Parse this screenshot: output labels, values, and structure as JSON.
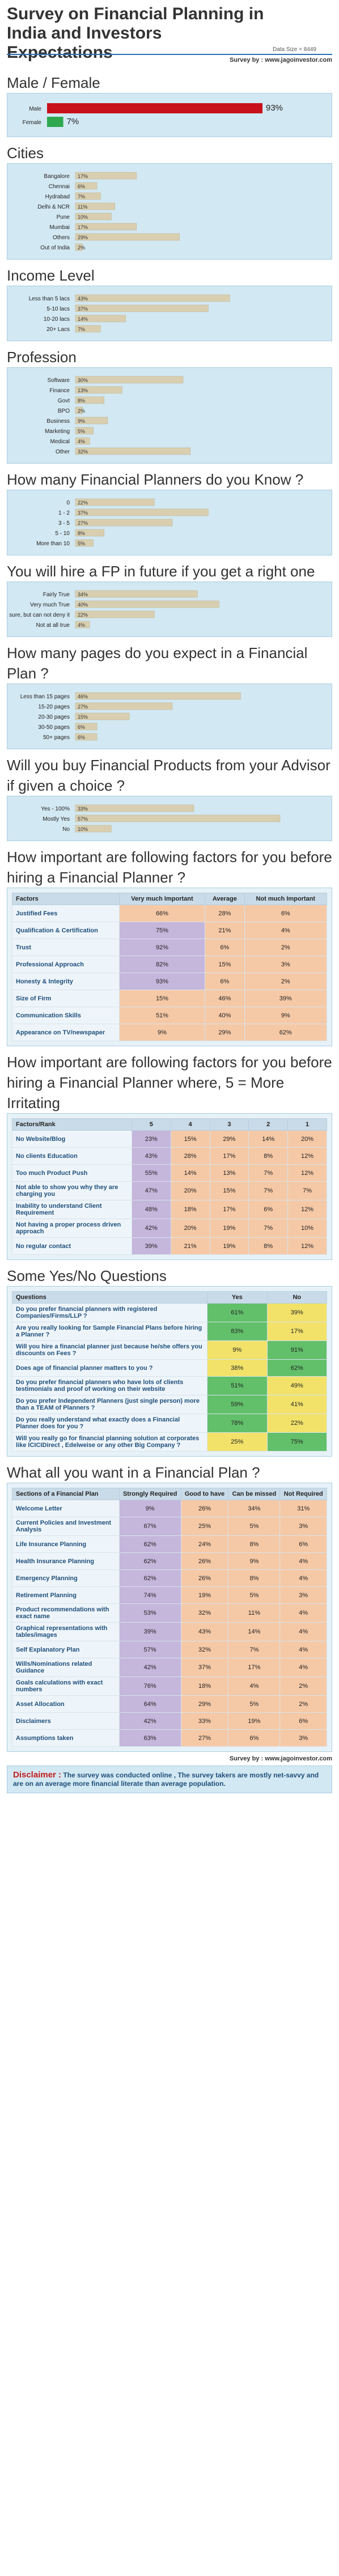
{
  "header": {
    "title": "Survey on Financial Planning in India and Investors Expectations",
    "data_size": "Data Size = 8449",
    "survey_by": "Survey by : www.jagoinvestor.com"
  },
  "colors": {
    "bar": "#d9cfb0",
    "bar_stroke": "#b9ad88",
    "male": "#c8101a",
    "female": "#2fa84f",
    "green_cell": "#62c06a",
    "yellow_cell": "#f2e26a",
    "purple_cell": "#c5b6dc",
    "peach_cell": "#f6c9a6"
  },
  "chart_data": [
    {
      "type": "bar",
      "title": "Male / Female",
      "categories": [
        "Male",
        "Female"
      ],
      "values": [
        93,
        7
      ],
      "value_labels": [
        "93%",
        "7%"
      ]
    },
    {
      "type": "bar",
      "title": "Cities",
      "categories": [
        "Bangalore",
        "Chennai",
        "Hydrabad",
        "Delhi & NCR",
        "Pune",
        "Mumbai",
        "Others",
        "Out of India"
      ],
      "values": [
        17,
        6,
        7,
        11,
        10,
        17,
        29,
        2
      ],
      "value_labels": [
        "17%",
        "6%",
        "7%",
        "11%",
        "10%",
        "17%",
        "29%",
        "2%"
      ]
    },
    {
      "type": "bar",
      "title": "Income Level",
      "categories": [
        "Less than 5 lacs",
        "5-10 lacs",
        "10-20 lacs",
        "20+ Lacs"
      ],
      "values": [
        43,
        37,
        14,
        7
      ],
      "value_labels": [
        "43%",
        "37%",
        "14%",
        "7%"
      ]
    },
    {
      "type": "bar",
      "title": "Profession",
      "categories": [
        "Software",
        "Finance",
        "Govt",
        "BPO",
        "Business",
        "Marketing",
        "Medical",
        "Other"
      ],
      "values": [
        30,
        13,
        8,
        2,
        9,
        5,
        4,
        32
      ],
      "value_labels": [
        "30%",
        "13%",
        "8%",
        "2%",
        "9%",
        "5%",
        "4%",
        "32%"
      ]
    },
    {
      "type": "bar",
      "title": "How many Financial Planners do you Know ?",
      "categories": [
        "0",
        "1 - 2",
        "3 - 5",
        "5 - 10",
        "More than 10"
      ],
      "values": [
        22,
        37,
        27,
        8,
        5
      ],
      "value_labels": [
        "22%",
        "37%",
        "27%",
        "8%",
        "5%"
      ]
    },
    {
      "type": "bar",
      "title": "You will hire a FP in future if you get a right one",
      "categories": [
        "Fairly True",
        "Very much True",
        "Not sure, but can not deny it",
        "Not at all true"
      ],
      "values": [
        34,
        40,
        22,
        4
      ],
      "value_labels": [
        "34%",
        "40%",
        "22%",
        "4%"
      ]
    },
    {
      "type": "bar",
      "title": "How many pages do you expect in a Financial Plan ?",
      "categories": [
        "Less than 15 pages",
        "15-20 pages",
        "20-30 pages",
        "30-50 pages",
        "50+ pages"
      ],
      "values": [
        46,
        27,
        15,
        6,
        6
      ],
      "value_labels": [
        "46%",
        "27%",
        "15%",
        "6%",
        "6%"
      ]
    },
    {
      "type": "bar",
      "title": "Will you buy Financial Products from your Advisor if given a choice ?",
      "categories": [
        "Yes - 100%",
        "Mostly Yes",
        "No"
      ],
      "values": [
        33,
        57,
        10
      ],
      "value_labels": [
        "33%",
        "57%",
        "10%"
      ]
    },
    {
      "type": "table",
      "title": "How important are following factors for you before hiring a Financial Planner ?",
      "columns": [
        "Factors",
        "Very much Important",
        "Average",
        "Not much Important"
      ],
      "rows": [
        [
          "Justified Fees",
          "66%",
          "28%",
          "6%"
        ],
        [
          "Qualification & Certification",
          "75%",
          "21%",
          "4%"
        ],
        [
          "Trust",
          "92%",
          "6%",
          "2%"
        ],
        [
          "Professional Approach",
          "82%",
          "15%",
          "3%"
        ],
        [
          "Honesty & Integrity",
          "93%",
          "6%",
          "2%"
        ],
        [
          "Size of Firm",
          "15%",
          "46%",
          "39%"
        ],
        [
          "Communication Skills",
          "51%",
          "40%",
          "9%"
        ],
        [
          "Appearance on TV/newspaper",
          "9%",
          "29%",
          "62%"
        ]
      ],
      "row_colors": [
        [
          "peach",
          "peach",
          "peach"
        ],
        [
          "purple",
          "peach",
          "peach"
        ],
        [
          "purple",
          "peach",
          "peach"
        ],
        [
          "purple",
          "peach",
          "peach"
        ],
        [
          "purple",
          "peach",
          "peach"
        ],
        [
          "peach",
          "peach",
          "peach"
        ],
        [
          "peach",
          "peach",
          "peach"
        ],
        [
          "peach",
          "peach",
          "peach"
        ]
      ]
    },
    {
      "type": "table",
      "title": "How important are following factors for you before hiring a Financial Planner where, 5 = More Irritating",
      "columns": [
        "Factors/Rank",
        "5",
        "4",
        "3",
        "2",
        "1"
      ],
      "rows": [
        [
          "No Website/Blog",
          "23%",
          "15%",
          "29%",
          "14%",
          "20%"
        ],
        [
          "No clients Education",
          "43%",
          "28%",
          "17%",
          "8%",
          "12%"
        ],
        [
          "Too much Product Push",
          "55%",
          "14%",
          "13%",
          "7%",
          "12%"
        ],
        [
          "Not able to show you why they are charging you",
          "47%",
          "20%",
          "15%",
          "7%",
          "7%"
        ],
        [
          "Inability to understand Client Requirement",
          "48%",
          "18%",
          "17%",
          "6%",
          "12%"
        ],
        [
          "Not having a proper process driven approach",
          "42%",
          "20%",
          "19%",
          "7%",
          "10%"
        ],
        [
          "No regular contact",
          "39%",
          "21%",
          "19%",
          "8%",
          "12%"
        ]
      ]
    },
    {
      "type": "table",
      "title": "Some Yes/No Questions",
      "columns": [
        "Questions",
        "Yes",
        "No"
      ],
      "rows": [
        [
          "Do you prefer financial planners with registered Companies/Firms/LLP ?",
          "61%",
          "39%"
        ],
        [
          "Are you really looking for Sample Financial Plans before hiring a Planner ?",
          "83%",
          "17%"
        ],
        [
          "Will you hire a financial planner just because he/she offers you discounts on Fees ?",
          "9%",
          "91%"
        ],
        [
          "Does age of financial planner matters to you ?",
          "38%",
          "62%"
        ],
        [
          "Do you prefer financial planners who have lots of clients testimonials and proof of working on their website",
          "51%",
          "49%"
        ],
        [
          "Do you prefer Independent Planners (just single person) more than a TEAM of Planners ?",
          "59%",
          "41%"
        ],
        [
          "Do you really understand what exactly does a Financial Planner does for you ?",
          "78%",
          "22%"
        ],
        [
          "Will you really go for financial planning solution at corporates like ICICIDirect , Edelweise or any other Big Company ?",
          "25%",
          "75%"
        ]
      ]
    },
    {
      "type": "table",
      "title": "What all you want in a Financial Plan ?",
      "columns": [
        "Sections of a Financial Plan",
        "Strongly Required",
        "Good to have",
        "Can be missed",
        "Not Required"
      ],
      "rows": [
        [
          "Welcome Letter",
          "9%",
          "26%",
          "34%",
          "31%"
        ],
        [
          "Current Policies and Investment Analysis",
          "67%",
          "25%",
          "5%",
          "3%"
        ],
        [
          "Life Insurance Planning",
          "62%",
          "24%",
          "8%",
          "6%"
        ],
        [
          "Health Insurance Planning",
          "62%",
          "26%",
          "9%",
          "4%"
        ],
        [
          "Emergency Planning",
          "62%",
          "26%",
          "8%",
          "4%"
        ],
        [
          "Retirement Planning",
          "74%",
          "19%",
          "5%",
          "3%"
        ],
        [
          "Product recommendations with exact name",
          "53%",
          "32%",
          "11%",
          "4%"
        ],
        [
          "Graphical representations with tables/images",
          "39%",
          "43%",
          "14%",
          "4%"
        ],
        [
          "Self Explanatory Plan",
          "57%",
          "32%",
          "7%",
          "4%"
        ],
        [
          "Wills/Nominations related Guidance",
          "42%",
          "37%",
          "17%",
          "4%"
        ],
        [
          "Goals calculations with exact numbers",
          "76%",
          "18%",
          "4%",
          "2%"
        ],
        [
          "Asset Allocation",
          "64%",
          "29%",
          "5%",
          "2%"
        ],
        [
          "Disclaimers",
          "42%",
          "33%",
          "19%",
          "6%"
        ],
        [
          "Assumptions taken",
          "63%",
          "27%",
          "6%",
          "3%"
        ]
      ]
    }
  ],
  "footer": {
    "survey_by": "Survey by : www.jagoinvestor.com",
    "disclaimer_label": "Disclaimer :",
    "disclaimer_text": "The survey was conducted online , The survey takers are mostly net-savvy and are on an average more financial literate than average population."
  }
}
